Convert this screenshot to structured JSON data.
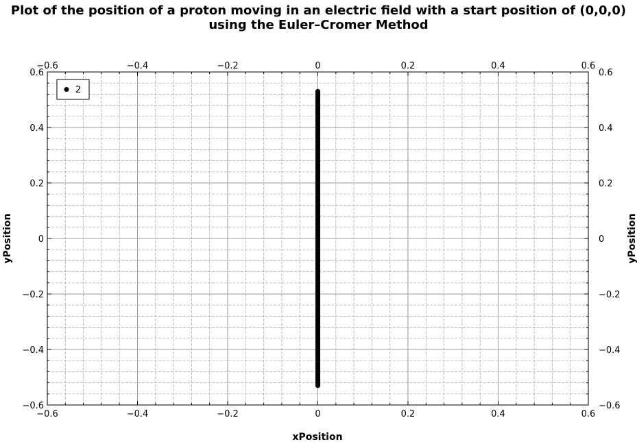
{
  "chart_data": {
    "type": "scatter",
    "title_line1": "Plot of the position of a proton moving in an electric field with a start position of (0,0,0)",
    "title_line2": "using the Euler–Cromer Method",
    "xlabel": "xPosition",
    "ylabel": "yPosition",
    "xlim": [
      -0.6,
      0.6
    ],
    "ylim": [
      -0.6,
      0.6
    ],
    "x_ticks": [
      -0.6,
      -0.4,
      -0.2,
      0,
      0.2,
      0.4,
      0.6
    ],
    "x_tick_labels": [
      "−0.6",
      "−0.4",
      "−0.2",
      "0",
      "0.2",
      "0.4",
      "0.6"
    ],
    "y_ticks": [
      0.6,
      0.4,
      0.2,
      0,
      -0.2,
      -0.4,
      -0.6
    ],
    "y_tick_labels": [
      "0.6",
      "0.4",
      "0.2",
      "0",
      "−0.2",
      "−0.4",
      "−0.6"
    ],
    "grid": true,
    "legend_position": "top-left",
    "series": [
      {
        "name": "2",
        "color": "#000000",
        "x": [
          0,
          0,
          0,
          0,
          0,
          0,
          0,
          0,
          0,
          0,
          0,
          0,
          0,
          0,
          0,
          0,
          0,
          0,
          0,
          0,
          0
        ],
        "y": [
          0.53,
          0.477,
          0.424,
          0.371,
          0.318,
          0.265,
          0.212,
          0.159,
          0.106,
          0.053,
          0,
          -0.053,
          -0.106,
          -0.159,
          -0.212,
          -0.265,
          -0.318,
          -0.371,
          -0.424,
          -0.477,
          -0.53
        ]
      }
    ]
  }
}
